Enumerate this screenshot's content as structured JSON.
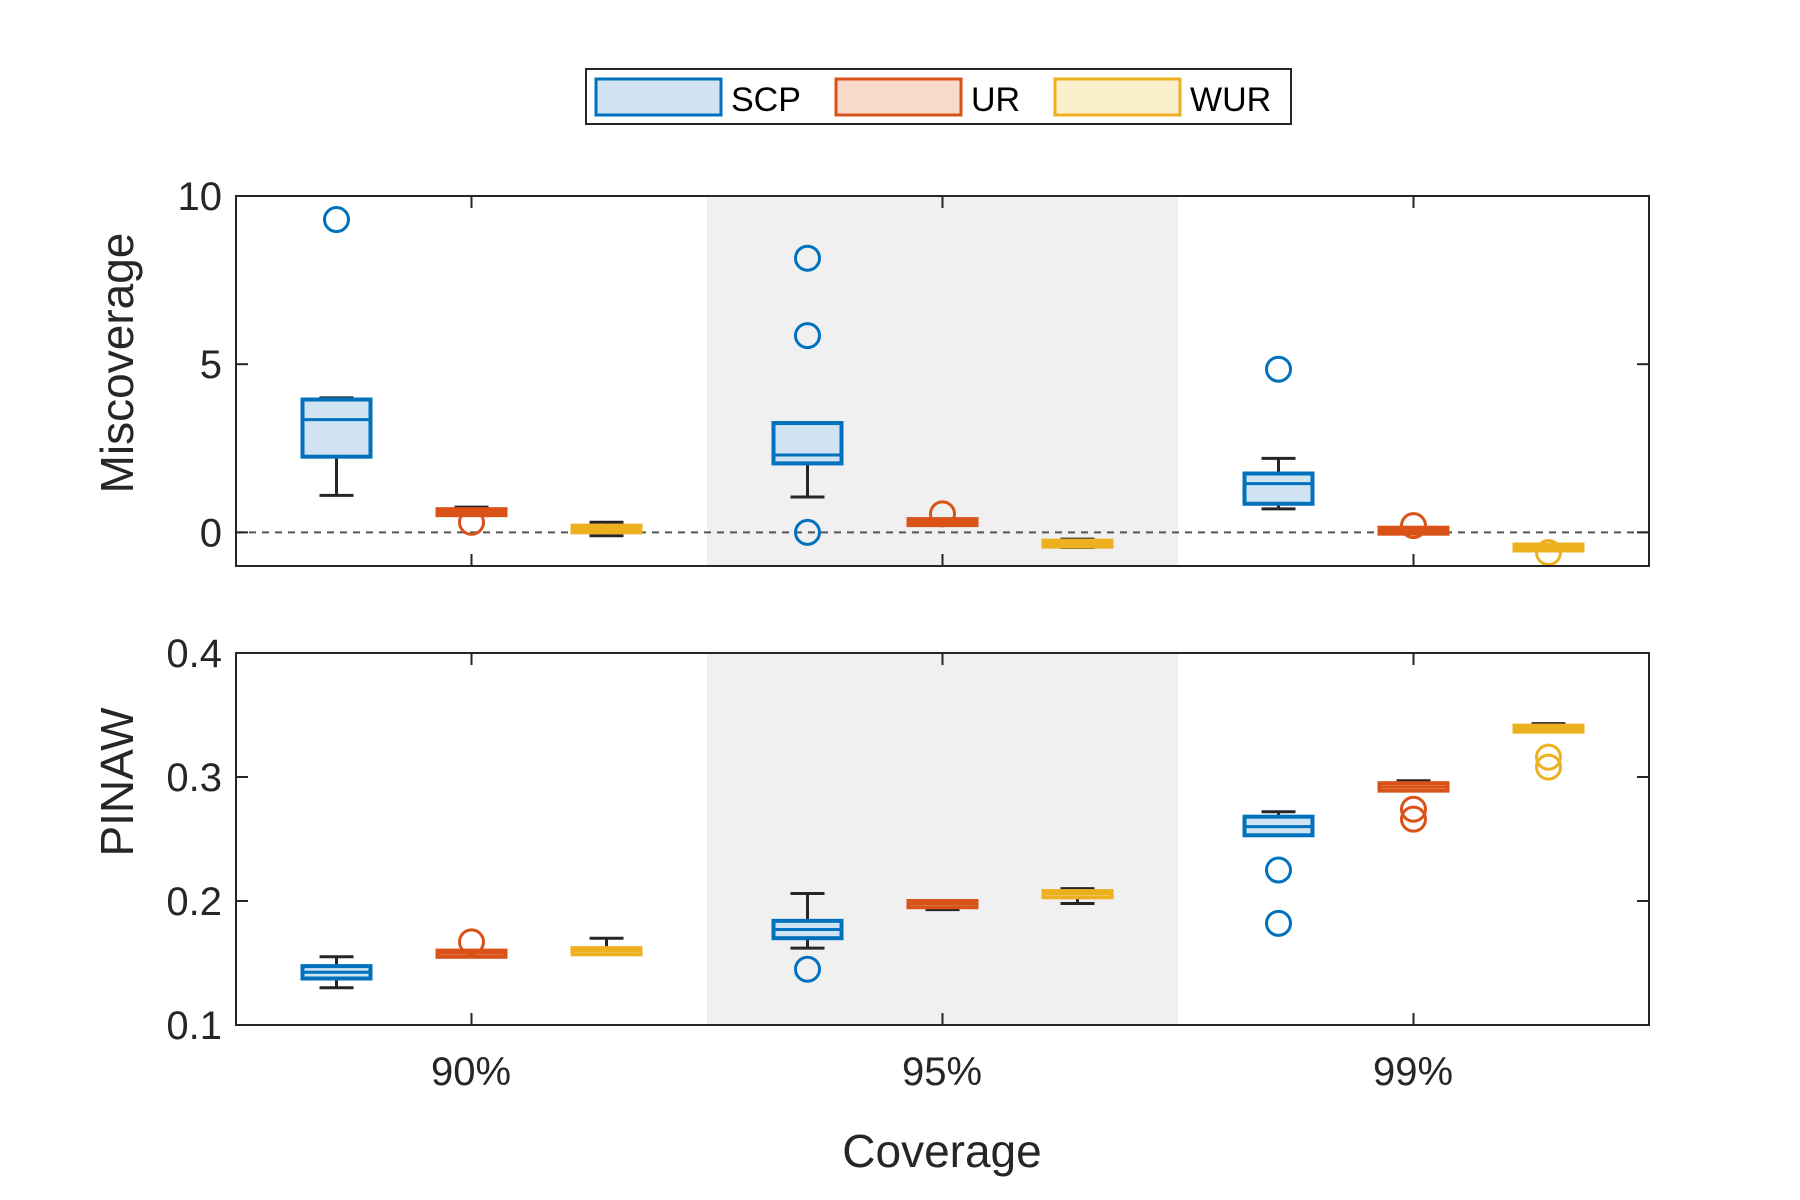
{
  "chart_data": {
    "type": "boxplot",
    "categories": [
      "90%",
      "95%",
      "99%"
    ],
    "xlabel": "Coverage",
    "legend": {
      "placement": "top-center",
      "entries": [
        {
          "name": "SCP",
          "color": "#0072BD",
          "fill": "#CFE3F2"
        },
        {
          "name": "UR",
          "color": "#D95319",
          "fill": "#F8D9CA"
        },
        {
          "name": "WUR",
          "color": "#EDB120",
          "fill": "#FCEFCC"
        }
      ]
    },
    "shaded_category": "95%",
    "shade_color": "#F0F0F0",
    "panels": [
      {
        "ylabel": "Miscoverage",
        "ylim": [
          -1,
          10
        ],
        "yticks": [
          0,
          5,
          10
        ],
        "ytick_labels": [
          "0",
          "5",
          "10"
        ],
        "reference_line": 0,
        "series": [
          {
            "name": "SCP",
            "boxes": [
              {
                "q1": 2.25,
                "median": 3.35,
                "q3": 3.95,
                "whisker_low": 1.1,
                "whisker_high": 4.0,
                "outliers": [
                  9.3
                ]
              },
              {
                "q1": 2.05,
                "median": 2.3,
                "q3": 3.25,
                "whisker_low": 1.05,
                "whisker_high": 3.25,
                "outliers": [
                  8.15,
                  5.85,
                  0.0
                ]
              },
              {
                "q1": 0.85,
                "median": 1.45,
                "q3": 1.75,
                "whisker_low": 0.7,
                "whisker_high": 2.2,
                "outliers": [
                  4.85
                ]
              }
            ]
          },
          {
            "name": "UR",
            "boxes": [
              {
                "q1": 0.55,
                "median": 0.6,
                "q3": 0.65,
                "whisker_low": 0.55,
                "whisker_high": 0.75,
                "outliers": [
                  0.3
                ]
              },
              {
                "q1": 0.28,
                "median": 0.3,
                "q3": 0.33,
                "whisker_low": 0.25,
                "whisker_high": 0.35,
                "outliers": [
                  0.55
                ]
              },
              {
                "q1": 0.03,
                "median": 0.05,
                "q3": 0.07,
                "whisker_low": 0.02,
                "whisker_high": 0.08,
                "outliers": [
                  0.2
                ]
              }
            ]
          },
          {
            "name": "WUR",
            "boxes": [
              {
                "q1": 0.0,
                "median": 0.1,
                "q3": 0.2,
                "whisker_low": -0.1,
                "whisker_high": 0.3,
                "outliers": []
              },
              {
                "q1": -0.4,
                "median": -0.33,
                "q3": -0.27,
                "whisker_low": -0.45,
                "whisker_high": -0.2,
                "outliers": []
              },
              {
                "q1": -0.48,
                "median": -0.45,
                "q3": -0.42,
                "whisker_low": -0.5,
                "whisker_high": -0.4,
                "outliers": [
                  -0.6
                ]
              }
            ]
          }
        ]
      },
      {
        "ylabel": "PINAW",
        "ylim": [
          0.1,
          0.4
        ],
        "yticks": [
          0.1,
          0.2,
          0.3,
          0.4
        ],
        "ytick_labels": [
          "0.1",
          "0.2",
          "0.3",
          "0.4"
        ],
        "reference_line": null,
        "series": [
          {
            "name": "SCP",
            "boxes": [
              {
                "q1": 0.1375,
                "median": 0.1425,
                "q3": 0.1475,
                "whisker_low": 0.13,
                "whisker_high": 0.155,
                "outliers": []
              },
              {
                "q1": 0.17,
                "median": 0.177,
                "q3": 0.184,
                "whisker_low": 0.162,
                "whisker_high": 0.206,
                "outliers": [
                  0.145
                ]
              },
              {
                "q1": 0.253,
                "median": 0.26,
                "q3": 0.268,
                "whisker_low": 0.253,
                "whisker_high": 0.272,
                "outliers": [
                  0.225,
                  0.182
                ]
              }
            ]
          },
          {
            "name": "UR",
            "boxes": [
              {
                "q1": 0.155,
                "median": 0.158,
                "q3": 0.16,
                "whisker_low": 0.155,
                "whisker_high": 0.16,
                "outliers": [
                  0.167
                ]
              },
              {
                "q1": 0.195,
                "median": 0.198,
                "q3": 0.2,
                "whisker_low": 0.193,
                "whisker_high": 0.2,
                "outliers": []
              },
              {
                "q1": 0.289,
                "median": 0.292,
                "q3": 0.295,
                "whisker_low": 0.289,
                "whisker_high": 0.297,
                "outliers": [
                  0.274,
                  0.266
                ]
              }
            ]
          },
          {
            "name": "WUR",
            "boxes": [
              {
                "q1": 0.157,
                "median": 0.16,
                "q3": 0.162,
                "whisker_low": 0.157,
                "whisker_high": 0.17,
                "outliers": []
              },
              {
                "q1": 0.203,
                "median": 0.206,
                "q3": 0.208,
                "whisker_low": 0.198,
                "whisker_high": 0.21,
                "outliers": []
              },
              {
                "q1": 0.337,
                "median": 0.339,
                "q3": 0.341,
                "whisker_low": 0.337,
                "whisker_high": 0.343,
                "outliers": [
                  0.316,
                  0.308
                ]
              }
            ]
          }
        ]
      }
    ]
  }
}
